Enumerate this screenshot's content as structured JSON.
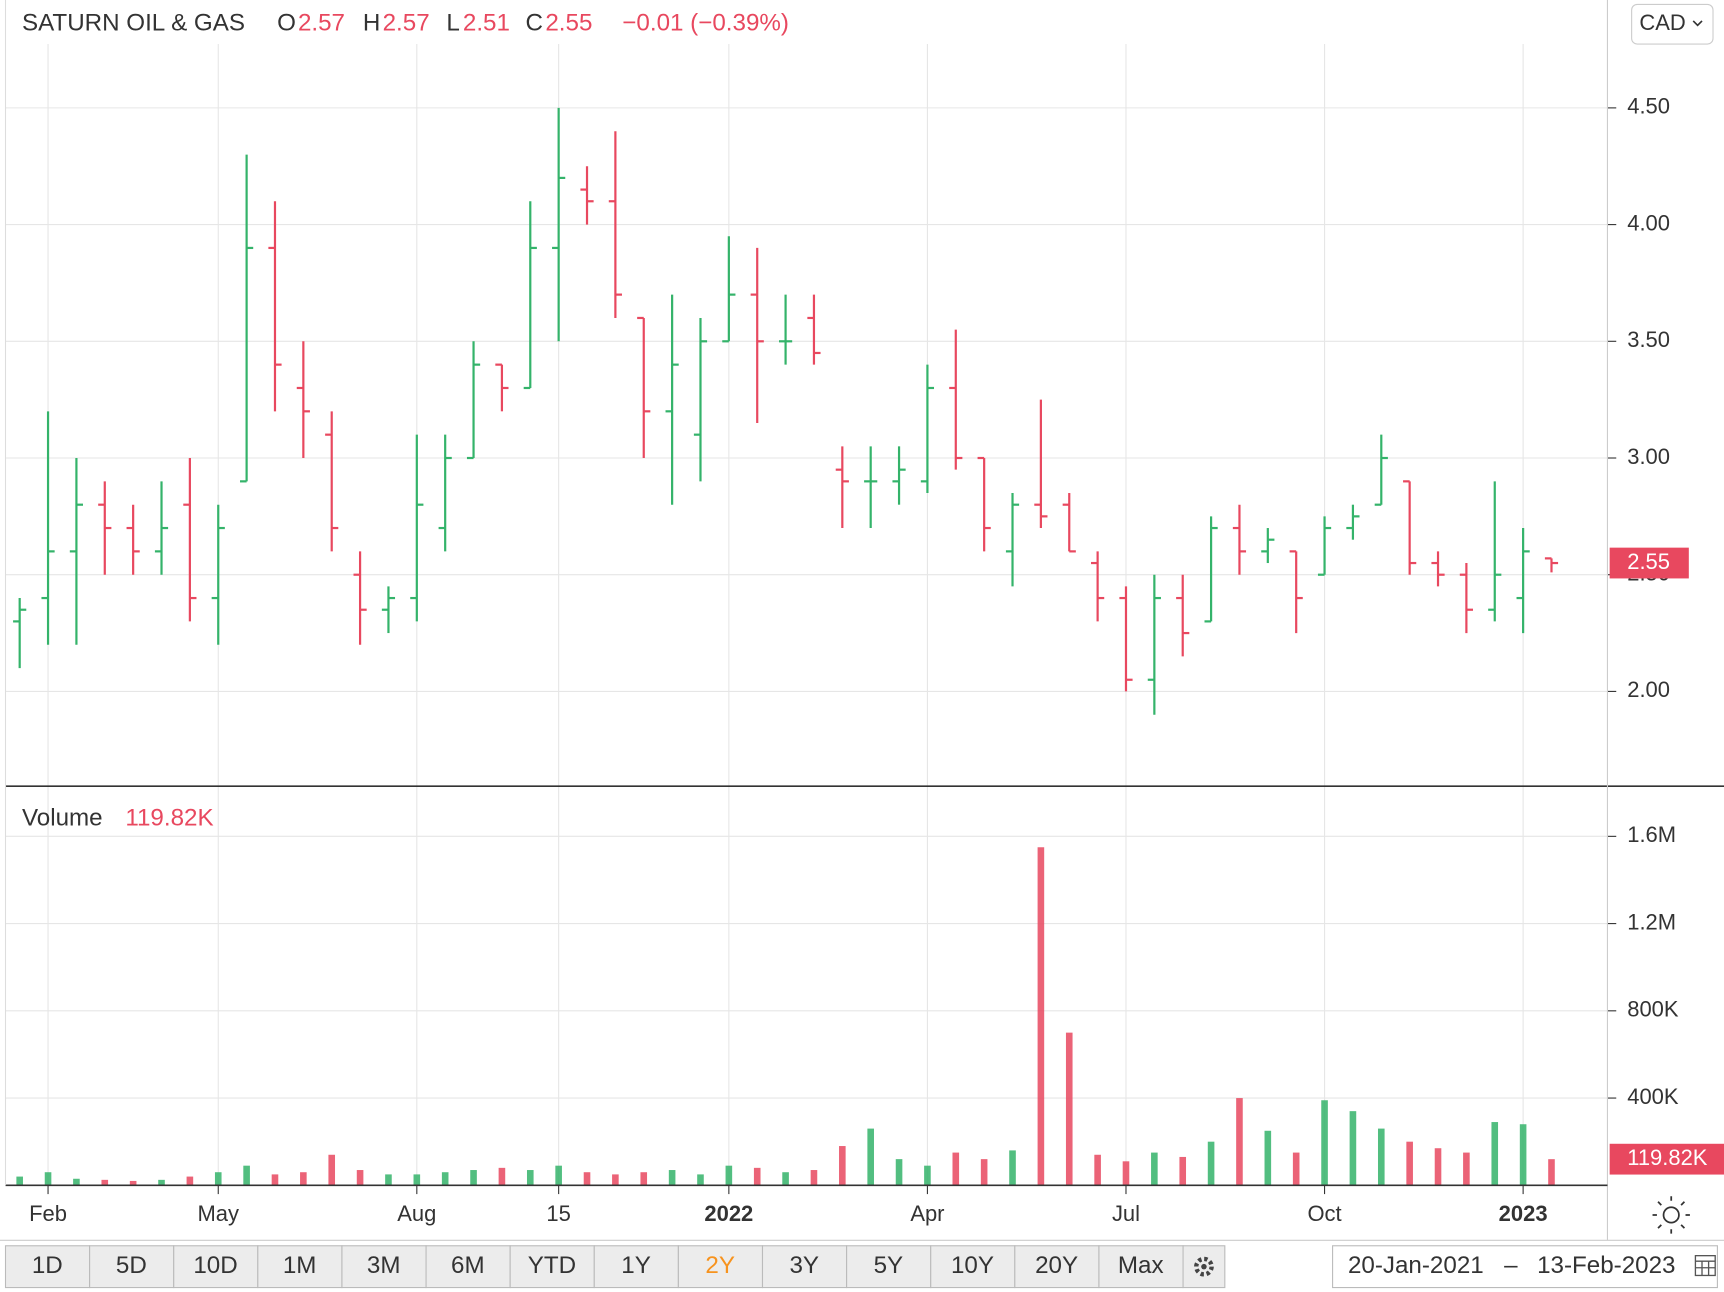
{
  "chart_data": [
    {
      "type": "ohlc",
      "title": "SATURN OIL & GAS",
      "legend": {
        "open_label": "O",
        "open": "2.57",
        "high_label": "H",
        "high": "2.57",
        "low_label": "L",
        "low": "2.51",
        "close_label": "C",
        "close": "2.55",
        "change": "−0.01 (−0.39%)"
      },
      "currency": "CAD",
      "categories": [
        null,
        "Feb",
        null,
        null,
        null,
        null,
        null,
        "May",
        null,
        null,
        null,
        null,
        null,
        null,
        "Aug",
        null,
        null,
        null,
        null,
        "15",
        null,
        null,
        null,
        null,
        null,
        "2022",
        null,
        null,
        null,
        null,
        null,
        null,
        "Apr",
        null,
        null,
        null,
        null,
        null,
        null,
        "Jul",
        null,
        null,
        null,
        null,
        null,
        null,
        "Oct",
        null,
        null,
        null,
        null,
        null,
        null,
        "2023",
        null
      ],
      "open": [
        2.3,
        2.4,
        2.6,
        2.8,
        2.7,
        2.6,
        2.8,
        2.4,
        2.9,
        3.9,
        3.3,
        3.1,
        2.5,
        2.35,
        2.4,
        2.7,
        3.0,
        3.4,
        3.3,
        3.9,
        4.15,
        4.1,
        3.6,
        3.2,
        3.1,
        3.5,
        3.7,
        3.5,
        3.6,
        2.95,
        2.9,
        2.9,
        2.9,
        3.3,
        3.0,
        2.6,
        2.8,
        2.8,
        2.55,
        2.4,
        2.05,
        2.4,
        2.3,
        2.7,
        2.6,
        2.6,
        2.5,
        2.7,
        2.8,
        2.9,
        2.55,
        2.5,
        2.35,
        2.4,
        2.57
      ],
      "high": [
        2.4,
        3.2,
        3.0,
        2.9,
        2.8,
        2.9,
        3.0,
        2.8,
        4.3,
        4.1,
        3.5,
        3.2,
        2.6,
        2.45,
        3.1,
        3.1,
        3.5,
        3.4,
        4.1,
        4.5,
        4.25,
        4.4,
        3.6,
        3.7,
        3.6,
        3.95,
        3.9,
        3.7,
        3.7,
        3.05,
        3.05,
        3.05,
        3.4,
        3.55,
        3.0,
        2.85,
        3.25,
        2.85,
        2.6,
        2.45,
        2.5,
        2.5,
        2.75,
        2.8,
        2.7,
        2.6,
        2.75,
        2.8,
        3.1,
        2.9,
        2.6,
        2.55,
        2.9,
        2.7,
        2.57
      ],
      "low": [
        2.1,
        2.2,
        2.2,
        2.5,
        2.5,
        2.5,
        2.3,
        2.2,
        2.9,
        3.2,
        3.0,
        2.6,
        2.2,
        2.25,
        2.3,
        2.6,
        3.0,
        3.2,
        3.3,
        3.5,
        4.0,
        3.6,
        3.0,
        2.8,
        2.9,
        3.5,
        3.15,
        3.4,
        3.4,
        2.7,
        2.7,
        2.8,
        2.85,
        2.95,
        2.6,
        2.45,
        2.7,
        2.6,
        2.3,
        2.0,
        1.9,
        2.15,
        2.3,
        2.5,
        2.55,
        2.25,
        2.5,
        2.65,
        2.8,
        2.5,
        2.45,
        2.25,
        2.3,
        2.25,
        2.51
      ],
      "close": [
        2.35,
        2.6,
        2.8,
        2.7,
        2.6,
        2.7,
        2.4,
        2.7,
        3.9,
        3.4,
        3.2,
        2.7,
        2.35,
        2.4,
        2.8,
        3.0,
        3.4,
        3.3,
        3.9,
        4.2,
        4.1,
        3.7,
        3.2,
        3.4,
        3.5,
        3.7,
        3.5,
        3.5,
        3.45,
        2.9,
        2.9,
        2.95,
        3.3,
        3.0,
        2.7,
        2.8,
        2.75,
        2.6,
        2.4,
        2.05,
        2.4,
        2.25,
        2.7,
        2.6,
        2.65,
        2.4,
        2.7,
        2.75,
        3.0,
        2.55,
        2.5,
        2.35,
        2.5,
        2.6,
        2.55
      ],
      "up_color": "#34b36a",
      "down_color": "#e8485f",
      "last_price": 2.55,
      "ylim": [
        1.594,
        4.962
      ],
      "yticks": [
        {
          "value": 2,
          "label": "2.00"
        },
        {
          "value": 2.5,
          "label": "2.50"
        },
        {
          "value": 3,
          "label": "3.00"
        },
        {
          "value": 3.5,
          "label": "3.50"
        },
        {
          "value": 4,
          "label": "4.00"
        },
        {
          "value": 4.5,
          "label": "4.50"
        }
      ],
      "grid": true
    },
    {
      "type": "bar",
      "title": "Volume",
      "current": "119.82K",
      "values": [
        40000,
        60000,
        30000,
        25000,
        20000,
        25000,
        40000,
        60000,
        90000,
        50000,
        60000,
        140000,
        70000,
        50000,
        50000,
        60000,
        70000,
        80000,
        70000,
        90000,
        60000,
        50000,
        60000,
        70000,
        50000,
        90000,
        80000,
        60000,
        70000,
        180000,
        260000,
        120000,
        90000,
        150000,
        120000,
        160000,
        1550000,
        700000,
        140000,
        110000,
        150000,
        130000,
        200000,
        400000,
        250000,
        150000,
        390000,
        340000,
        260000,
        200000,
        170000,
        150000,
        290000,
        280000,
        119820
      ],
      "last_volume": {
        "value": 119820,
        "label": "119.82K"
      },
      "ylim": [
        0,
        1830000
      ],
      "yticks": [
        {
          "value": 400000,
          "label": "400K"
        },
        {
          "value": 800000,
          "label": "800K"
        },
        {
          "value": 1200000,
          "label": "1.2M"
        },
        {
          "value": 1600000,
          "label": "1.6M"
        }
      ],
      "grid": true
    }
  ],
  "toolbar": {
    "ranges": [
      "1D",
      "5D",
      "10D",
      "1M",
      "3M",
      "6M",
      "YTD",
      "1Y",
      "2Y",
      "3Y",
      "5Y",
      "10Y",
      "20Y",
      "Max"
    ],
    "selected": "2Y",
    "date_from": "20-Jan-2021",
    "date_sep": "–",
    "date_to": "13-Feb-2023"
  }
}
